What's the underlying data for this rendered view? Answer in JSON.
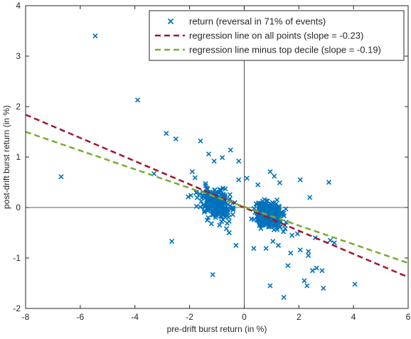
{
  "chart_data": {
    "type": "scatter",
    "xlabel": "pre-drift burst return (in %)",
    "ylabel": "post-drift burst return (in %)",
    "xlim": [
      -8,
      6
    ],
    "ylim": [
      -2,
      4
    ],
    "xticks": [
      "-8",
      "-6",
      "-4",
      "-2",
      "0",
      "2",
      "4",
      "6"
    ],
    "yticks": [
      "-2",
      "-1",
      "0",
      "1",
      "2",
      "3",
      "4"
    ],
    "grid": false,
    "legend_position": "top-right",
    "series": [
      {
        "name": "return (reversal in 71% of events)",
        "kind": "scatter",
        "marker": "x",
        "color": "#0072bd",
        "points": [
          [
            -5.45,
            3.4
          ],
          [
            -3.9,
            2.13
          ],
          [
            -6.7,
            0.61
          ],
          [
            -2.85,
            1.47
          ],
          [
            -2.5,
            1.36
          ],
          [
            -3.3,
            0.67
          ],
          [
            -2.65,
            -0.67
          ],
          [
            -1.15,
            -1.33
          ],
          [
            -1.6,
            1.32
          ],
          [
            -1.3,
            1.06
          ],
          [
            -1.1,
            0.92
          ],
          [
            -0.8,
            0.99
          ],
          [
            -0.5,
            1.14
          ],
          [
            -0.2,
            0.92
          ],
          [
            -1.8,
            0.59
          ],
          [
            -1.9,
            0.71
          ],
          [
            -1.95,
            0.24
          ],
          [
            -2.05,
            0.21
          ],
          [
            -1.75,
            0.3
          ],
          [
            -1.35,
            -0.25
          ],
          [
            -1.2,
            -0.32
          ],
          [
            -0.9,
            -0.35
          ],
          [
            -0.65,
            -0.42
          ],
          [
            -0.3,
            -0.75
          ],
          [
            -0.55,
            -0.5
          ],
          [
            -0.2,
            0.55
          ],
          [
            0.95,
            0.71
          ],
          [
            1.1,
            0.62
          ],
          [
            1.3,
            0.49
          ],
          [
            2.05,
            0.55
          ],
          [
            1.5,
            -0.42
          ],
          [
            1.75,
            -0.55
          ],
          [
            1.25,
            -0.75
          ],
          [
            0.8,
            -0.81
          ],
          [
            0.35,
            -0.81
          ],
          [
            1.95,
            -0.52
          ],
          [
            2.05,
            -0.84
          ],
          [
            2.35,
            -0.87
          ],
          [
            2.35,
            -0.95
          ],
          [
            1.6,
            -1.15
          ],
          [
            1.45,
            -1.78
          ],
          [
            0.95,
            -1.55
          ],
          [
            1.05,
            -0.67
          ],
          [
            1.7,
            -0.9
          ],
          [
            2.3,
            -1.55
          ],
          [
            2.5,
            -1.25
          ],
          [
            2.65,
            -1.2
          ],
          [
            2.2,
            -1.45
          ],
          [
            2.85,
            -1.25
          ],
          [
            2.9,
            -1.6
          ],
          [
            3.15,
            -0.65
          ],
          [
            3.3,
            -0.7
          ],
          [
            3.1,
            0.5
          ],
          [
            2.4,
            0.2
          ],
          [
            4.05,
            -1.52
          ],
          [
            2.6,
            -0.6
          ],
          [
            1.2,
            0.15
          ],
          [
            0.5,
            0.45
          ],
          [
            0.1,
            0.58
          ]
        ],
        "cloud_left": {
          "x_range": [
            -1.9,
            -0.1
          ],
          "y_range": [
            -0.35,
            0.5
          ],
          "count": 220
        },
        "cloud_right": {
          "x_range": [
            0.05,
            1.7
          ],
          "y_range": [
            -0.55,
            0.25
          ],
          "count": 260
        }
      },
      {
        "name": "regression line on all points (slope = -0.23)",
        "kind": "line",
        "dash": true,
        "color": "#a2142f",
        "points": [
          [
            -8,
            1.84
          ],
          [
            6,
            -1.38
          ]
        ]
      },
      {
        "name": "regression line minus top decile (slope = -0.19)",
        "kind": "line",
        "dash": true,
        "color": "#77ac30",
        "points": [
          [
            -8,
            1.5
          ],
          [
            6,
            -1.1
          ]
        ]
      }
    ]
  }
}
